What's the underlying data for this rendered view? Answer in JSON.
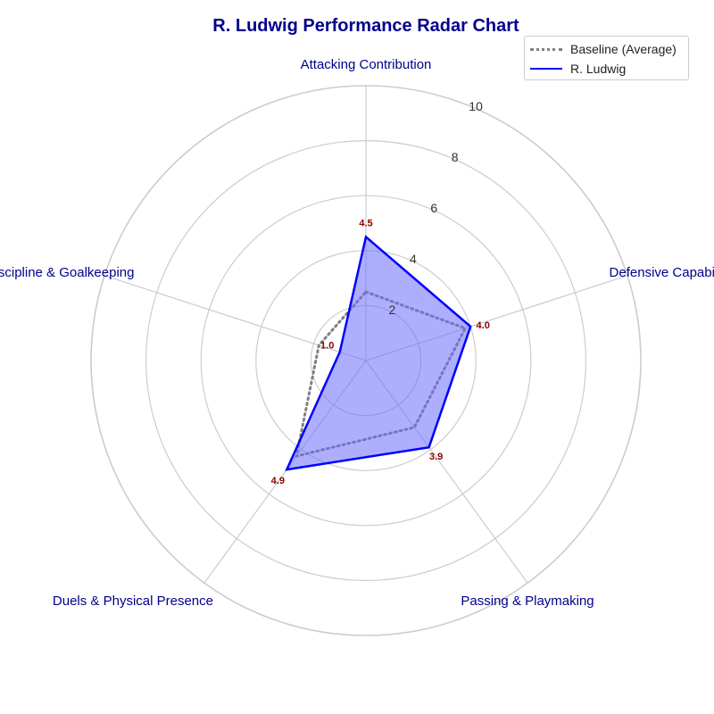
{
  "chart_data": {
    "type": "radar",
    "title": "R. Ludwig Performance Radar Chart",
    "categories": [
      "Attacking Contribution",
      "Defensive Capability",
      "Passing & Playmaking",
      "Duels & Physical Presence",
      "Discipline & Goalkeeping"
    ],
    "radial_ticks": [
      "2",
      "4",
      "6",
      "8",
      "10"
    ],
    "rlim": [
      0,
      10
    ],
    "grid": true,
    "legend_position": "top-right",
    "series": [
      {
        "name": "Baseline (Average)",
        "values": [
          2.5,
          3.8,
          3.0,
          4.3,
          1.8
        ],
        "style": "dotted",
        "color": "#808080"
      },
      {
        "name": "R. Ludwig",
        "values": [
          4.5,
          4.0,
          3.9,
          4.9,
          1.0
        ],
        "value_labels": [
          "4.5",
          "4.0",
          "3.9",
          "4.9",
          "1.0"
        ],
        "style": "solid",
        "color": "#0000ff",
        "fill": "#6b6bff"
      }
    ],
    "label_color": "#00008b",
    "value_label_color": "#8b0000"
  }
}
